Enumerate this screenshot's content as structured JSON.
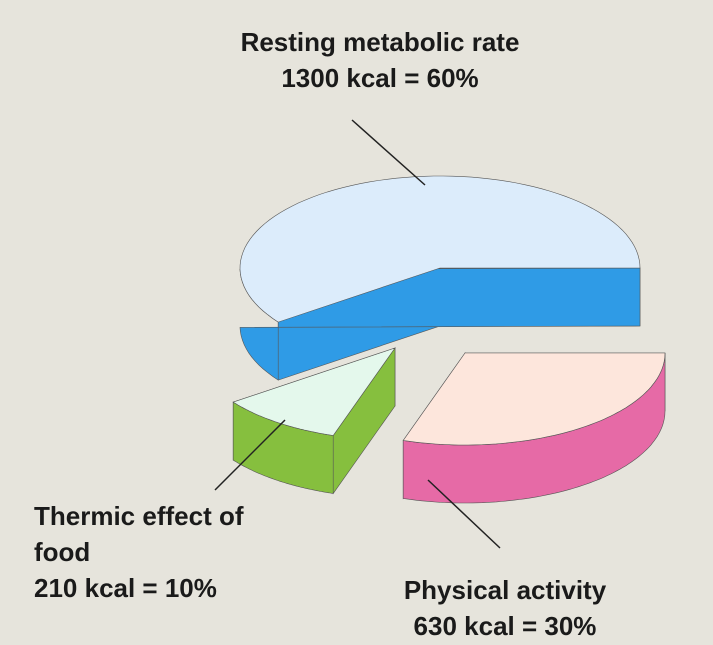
{
  "chart_data": {
    "type": "pie3d",
    "categories": [
      "Resting metabolic rate",
      "Thermic effect of food",
      "Physical activity"
    ],
    "values": [
      60,
      10,
      30
    ],
    "value_labels": [
      "1300 kcal = 60%",
      "210 kcal = 10%",
      "630 kcal = 30%"
    ],
    "colors": [
      "#dcecfb",
      "#e4f8ec",
      "#fde6dc"
    ]
  }
}
